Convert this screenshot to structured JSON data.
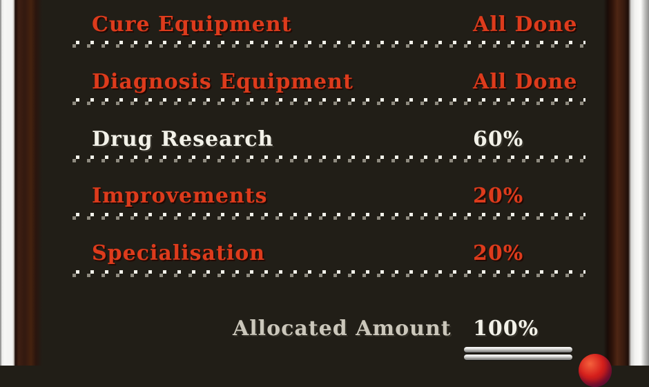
{
  "rows": [
    {
      "label": "Cure Equipment",
      "value": "All Done"
    },
    {
      "label": "Diagnosis Equipment",
      "value": "All Done"
    },
    {
      "label": "Drug Research",
      "value": "60%"
    },
    {
      "label": "Improvements",
      "value": "20%"
    },
    {
      "label": "Specialisation",
      "value": "20%"
    }
  ],
  "summary": {
    "label": "Allocated Amount",
    "value": "100%"
  },
  "colors": {
    "background": "#211E17",
    "red_text": "#DD3B1C",
    "white_text": "#F2F1E8",
    "summary_label_gray": "#CBC7BB",
    "dot_bright": "#F3F2EA",
    "dot_shadow": "#8F8B80",
    "frame_brown": "#3E1F12",
    "frame_white": "#F4F4F2",
    "ball_red": "#D6201C"
  }
}
